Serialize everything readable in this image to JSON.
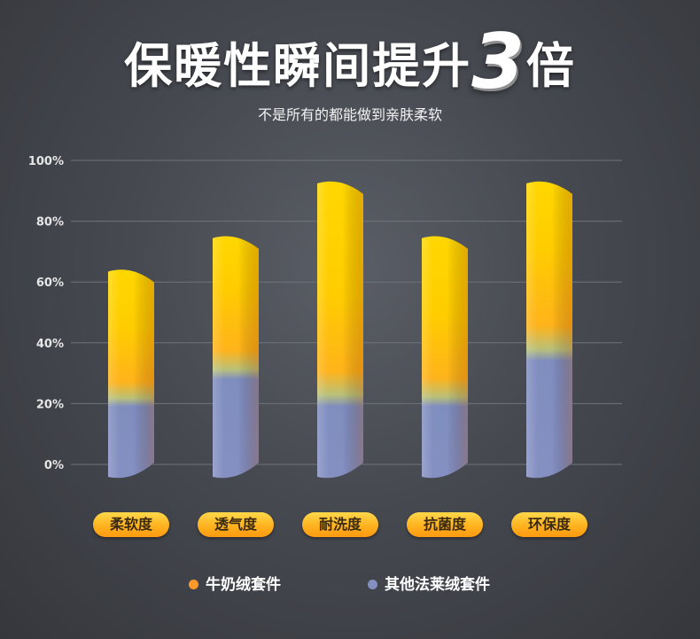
{
  "header": {
    "title_main": "保暖性瞬间提升",
    "title_num": "3",
    "title_tail": "倍",
    "subtitle": "不是所有的都能做到亲肤柔软"
  },
  "chart_data": {
    "type": "bar",
    "categories": [
      "柔软度",
      "透气度",
      "耐洗度",
      "抗菌度",
      "环保度"
    ],
    "series": [
      {
        "name": "牛奶绒套件",
        "values": [
          64,
          75,
          93,
          75,
          93
        ]
      },
      {
        "name": "其他法莱绒套件",
        "values": [
          19,
          28,
          19,
          19,
          34
        ]
      }
    ],
    "yticks": [
      "100%",
      "80%",
      "60%",
      "40%",
      "20%",
      "0%"
    ],
    "ylim": [
      0,
      100
    ],
    "grid": true,
    "legend_position": "bottom",
    "colors": {
      "series_1": "#ff9a2a",
      "series_1_top": "#ffd400",
      "series_2": "#8590c2",
      "category_pill": "#ffb21f"
    }
  },
  "legend": [
    {
      "label": "牛奶绒套件",
      "color": "#ff9a2a"
    },
    {
      "label": "其他法莱绒套件",
      "color": "#8590c2"
    }
  ]
}
